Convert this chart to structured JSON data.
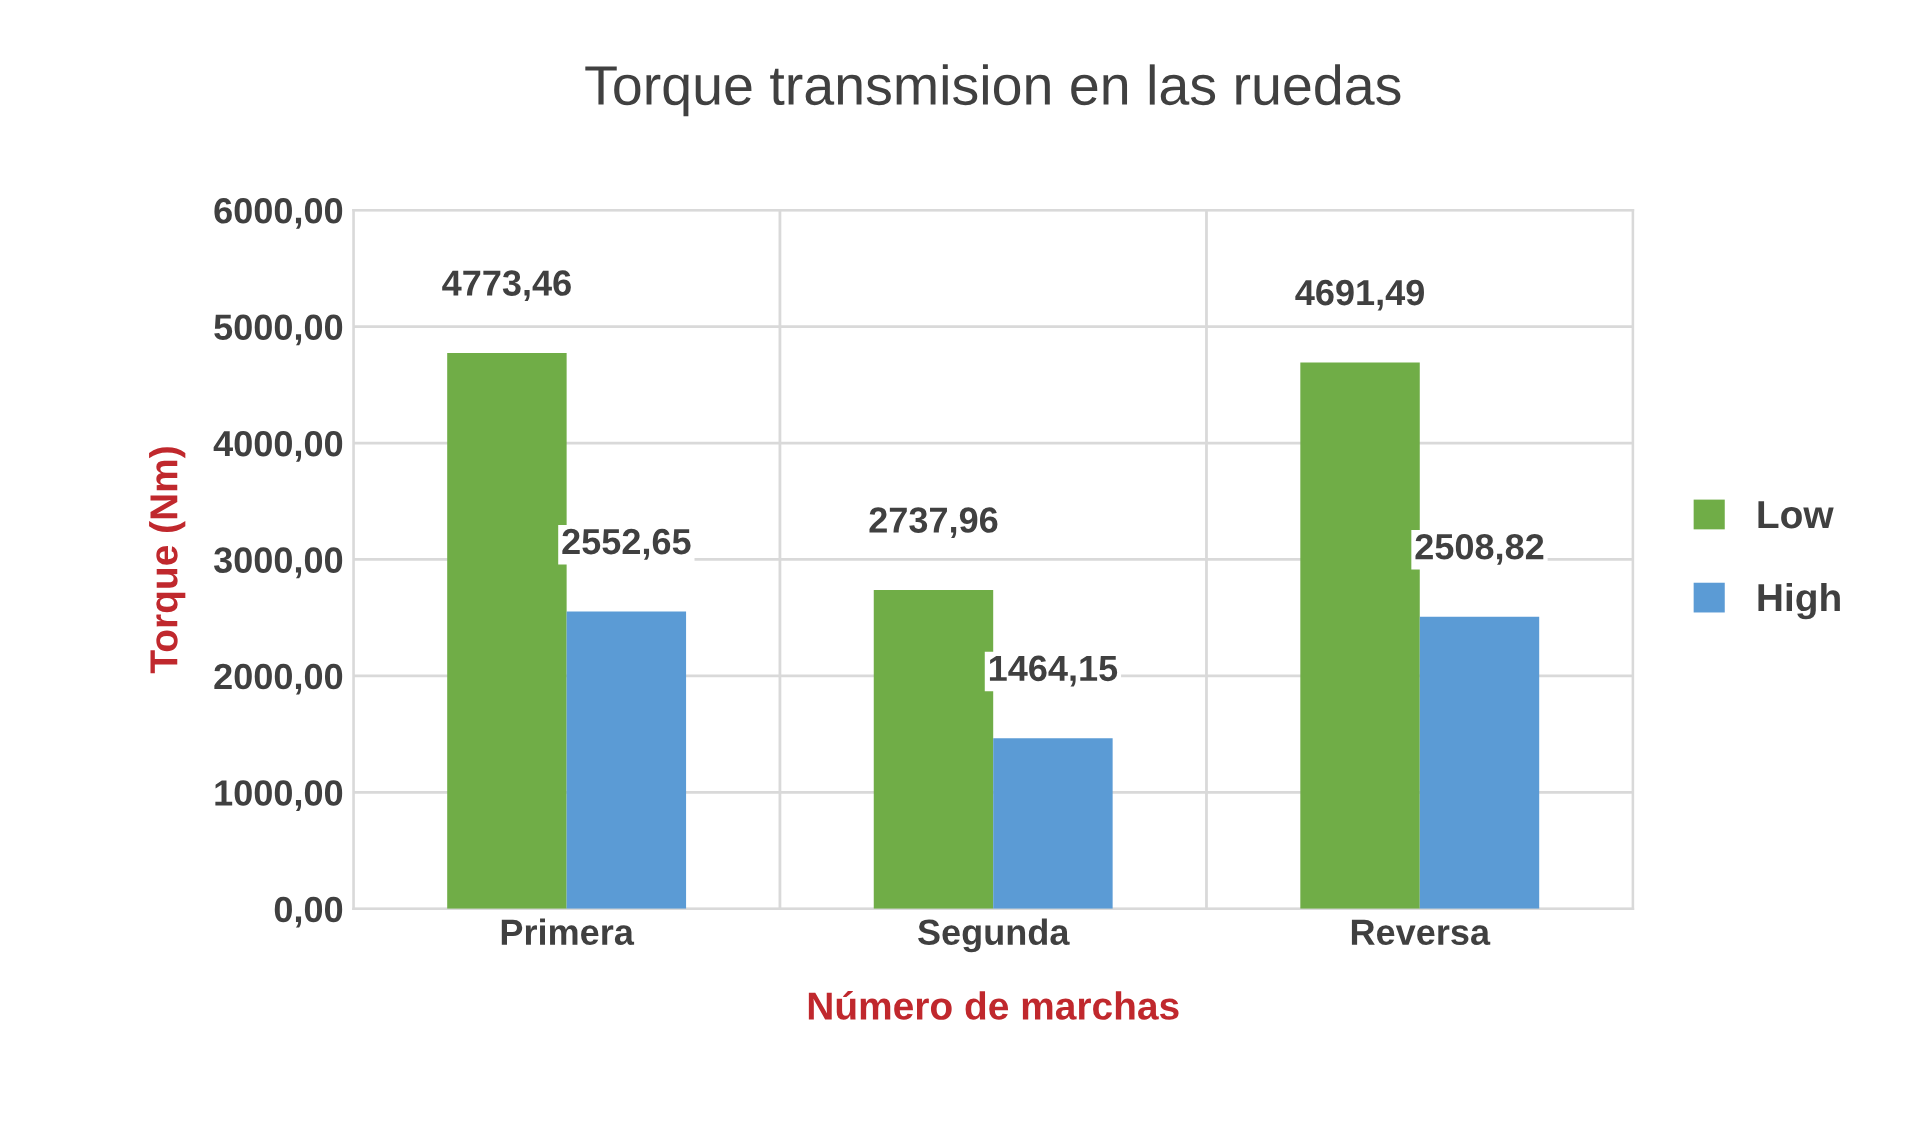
{
  "chart_data": {
    "type": "bar",
    "title": "Torque transmision en las ruedas",
    "xlabel": "Número de marchas",
    "ylabel": "Torque (Nm)",
    "categories": [
      "Primera",
      "Segunda",
      "Reversa"
    ],
    "series": [
      {
        "name": "Low",
        "color": "#70ad47",
        "values": [
          4773.46,
          2737.96,
          4691.49
        ],
        "value_labels": [
          "4773,46",
          "2737,96",
          "4691,49"
        ]
      },
      {
        "name": "High",
        "color": "#5b9bd5",
        "values": [
          2552.65,
          1464.15,
          2508.82
        ],
        "value_labels": [
          "2552,65",
          "1464,15",
          "2508,82"
        ]
      }
    ],
    "ylim": [
      0,
      6000
    ],
    "yticks": [
      {
        "value": 0,
        "label": "0,00"
      },
      {
        "value": 1000,
        "label": "1000,00"
      },
      {
        "value": 2000,
        "label": "2000,00"
      },
      {
        "value": 3000,
        "label": "3000,00"
      },
      {
        "value": 4000,
        "label": "4000,00"
      },
      {
        "value": 5000,
        "label": "5000,00"
      },
      {
        "value": 6000,
        "label": "6000,00"
      }
    ],
    "grid": true,
    "legend": "right"
  }
}
